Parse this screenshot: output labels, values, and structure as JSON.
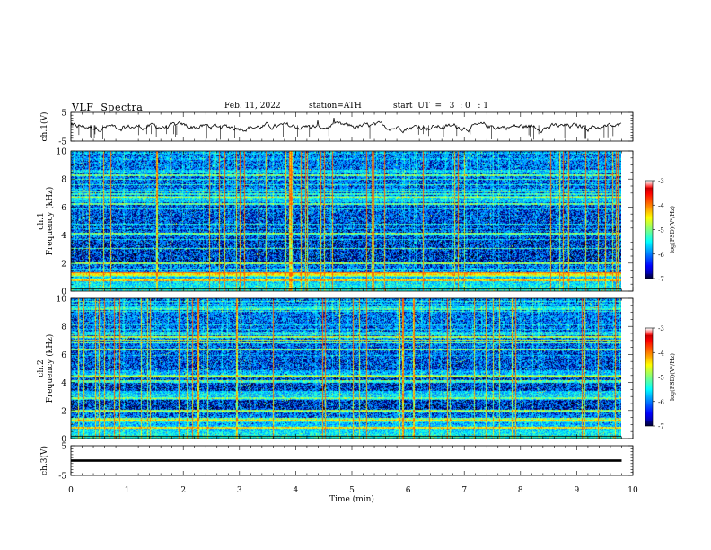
{
  "header": {
    "title": "VLF  Spectra",
    "date": "Feb. 11, 2022",
    "station": "station=ATH",
    "start": "start  UT  =   3  : 0   : 1"
  },
  "chart_data": [
    {
      "type": "line",
      "name": "ch1-waveform",
      "ylabel": "ch.1(V)",
      "ylim": [
        -5,
        5
      ],
      "yticks": [
        "5",
        "-5"
      ],
      "xlim": [
        0,
        10
      ],
      "x_end": 9.8,
      "baseline": 0
    },
    {
      "type": "heatmap",
      "name": "ch1-spectrogram",
      "ylabel": "ch.1\nFrequency  (kHz)",
      "ylabel_lines": [
        "ch.1",
        "Frequency  (kHz)"
      ],
      "ylim": [
        0,
        10
      ],
      "yticks": [
        "0",
        "2",
        "4",
        "6",
        "8",
        "10"
      ],
      "xlim": [
        0,
        10
      ],
      "x_end": 9.8,
      "colorbar": {
        "label": "log(PSD)(V²/Hz)",
        "ticks": [
          "-3",
          "-4",
          "-5",
          "-6",
          "-7"
        ],
        "range": [
          -7,
          -3
        ]
      }
    },
    {
      "type": "heatmap",
      "name": "ch2-spectrogram",
      "ylabel_lines": [
        "ch.2",
        "Frequency  (kHz)"
      ],
      "ylim": [
        0,
        10
      ],
      "yticks": [
        "0",
        "2",
        "4",
        "6",
        "8",
        "10"
      ],
      "xlim": [
        0,
        10
      ],
      "x_end": 9.8,
      "colorbar": {
        "label": "log(PSD)(V²/Hz)",
        "ticks": [
          "-3",
          "-4",
          "-5",
          "-6",
          "-7"
        ],
        "range": [
          -7,
          -3
        ]
      }
    },
    {
      "type": "line",
      "name": "ch3-waveform",
      "ylabel": "ch.3(V)",
      "ylim": [
        -5,
        5
      ],
      "yticks": [
        "5",
        "-5"
      ],
      "xlim": [
        0,
        10
      ],
      "x_end": 9.8,
      "xlabel": "Time  (min)",
      "xticks": [
        "0",
        "1",
        "2",
        "3",
        "4",
        "5",
        "6",
        "7",
        "8",
        "9",
        "10"
      ]
    }
  ]
}
